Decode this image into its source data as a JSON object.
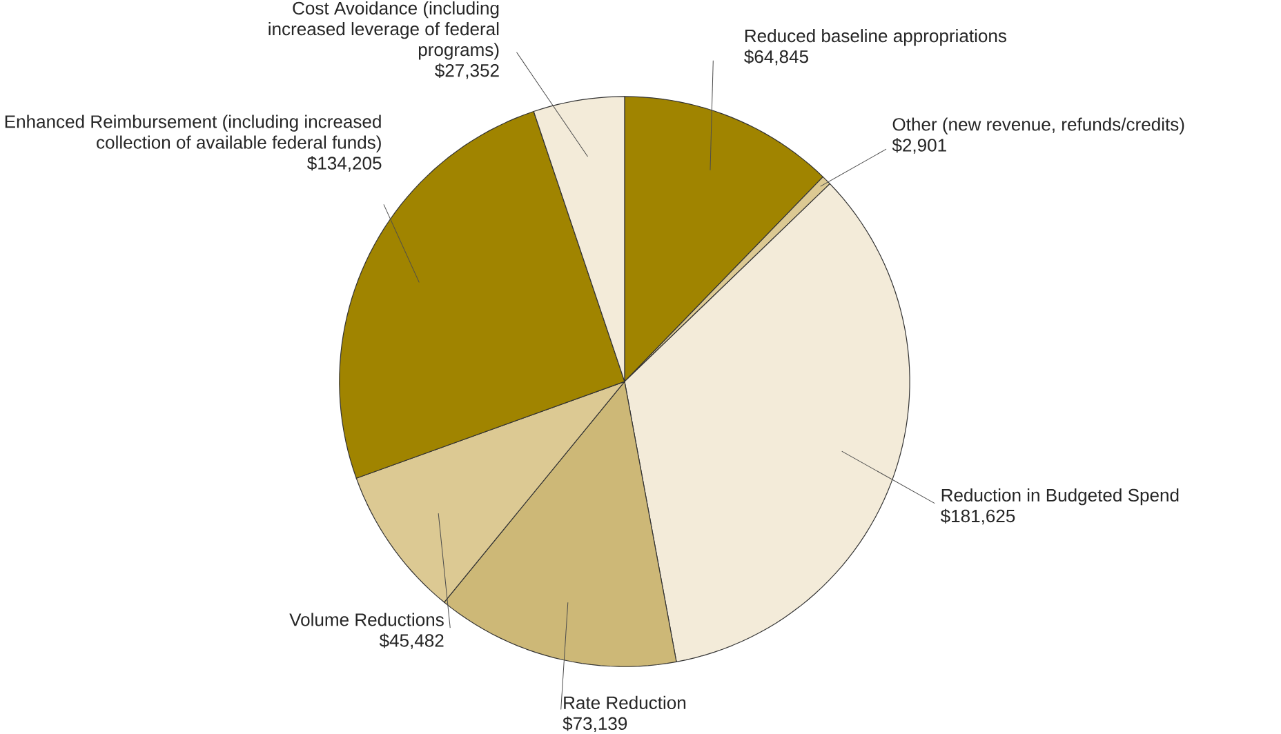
{
  "chart_data": {
    "type": "pie",
    "categories": [
      "Reduced baseline appropriations",
      "Other (new revenue, refunds/credits)",
      "Reduction in Budgeted Spend",
      "Rate Reduction",
      "Volume Reductions",
      "Enhanced Reimbursement (including increased collection of available federal funds)",
      "Cost Avoidance (including increased leverage of federal programs)"
    ],
    "values": [
      64845,
      2901,
      181625,
      73139,
      45482,
      134205,
      27352
    ],
    "value_labels": [
      "$64,845",
      "$2,901",
      "$181,625",
      "$73,139",
      "$45,482",
      "$134,205",
      "$27,352"
    ],
    "colors": [
      "#a08400",
      "#dcc993",
      "#f3ebd9",
      "#cdb877",
      "#dcc993",
      "#a08400",
      "#f3ebd9"
    ]
  }
}
